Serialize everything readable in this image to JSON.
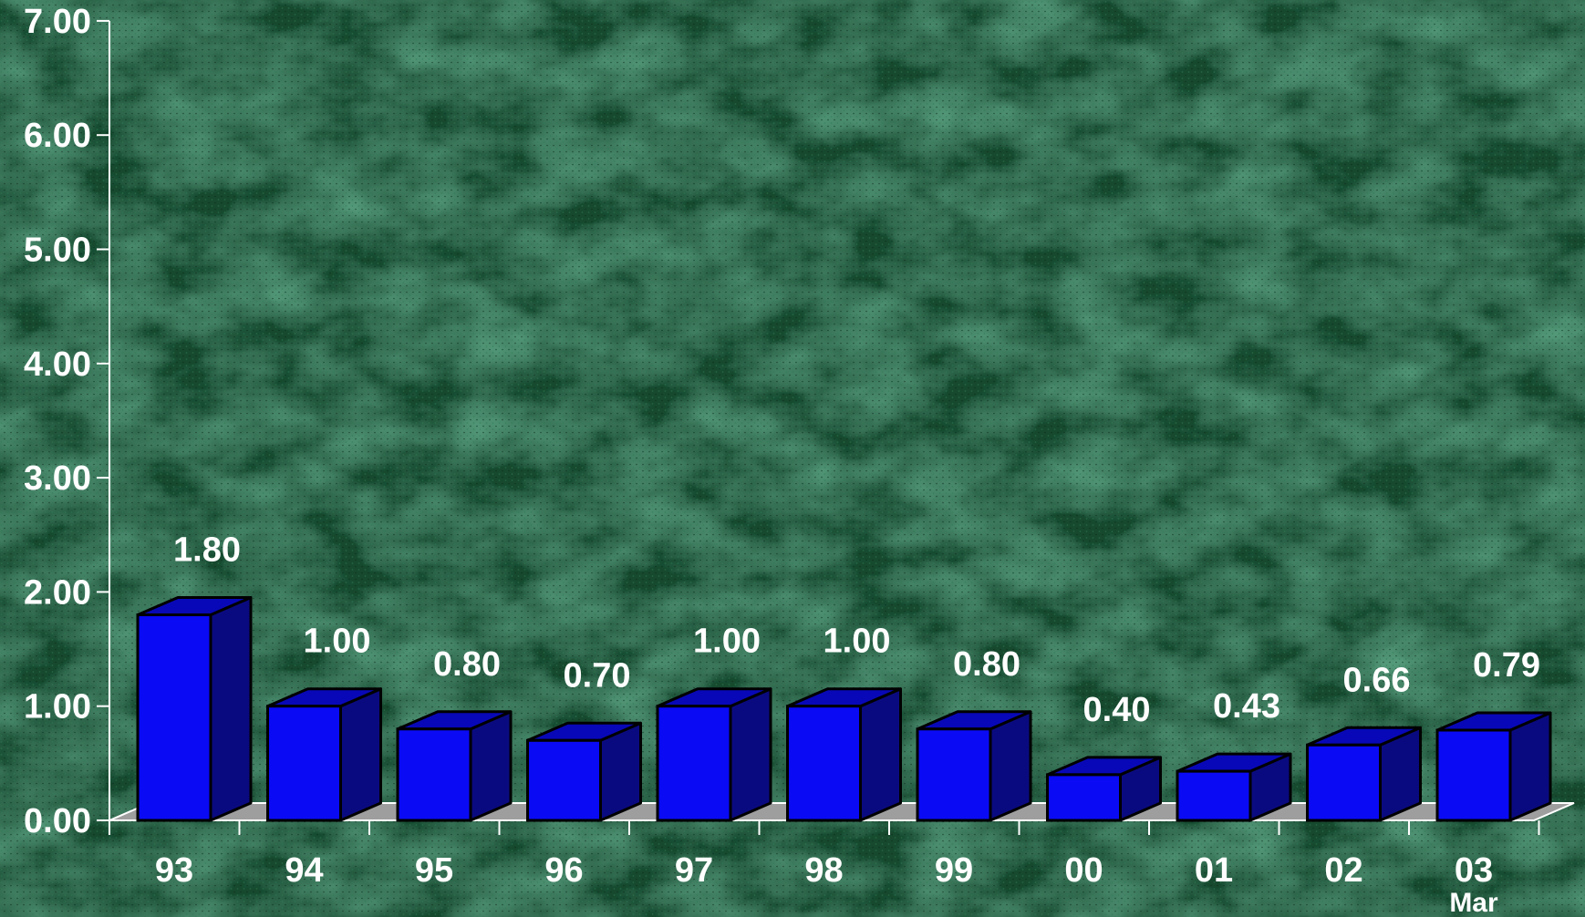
{
  "chart_data": {
    "type": "bar",
    "categories": [
      "93",
      "94",
      "95",
      "96",
      "97",
      "98",
      "99",
      "00",
      "01",
      "02",
      "03"
    ],
    "category_sublabels": [
      "",
      "",
      "",
      "",
      "",
      "",
      "",
      "",
      "",
      "",
      "Mar"
    ],
    "values": [
      1.8,
      1.0,
      0.8,
      0.7,
      1.0,
      1.0,
      0.8,
      0.4,
      0.43,
      0.66,
      0.79
    ],
    "value_labels": [
      "1.80",
      "1.00",
      "0.80",
      "0.70",
      "1.00",
      "1.00",
      "0.80",
      "0.40",
      "0.43",
      "0.66",
      "0.79"
    ],
    "ylim": [
      0,
      7
    ],
    "yticks": [
      "0.00",
      "1.00",
      "2.00",
      "3.00",
      "4.00",
      "5.00",
      "6.00",
      "7.00"
    ],
    "grid": false,
    "legend": "none",
    "style": "3d-bar",
    "colors": {
      "bar_front": "#0a0af5",
      "bar_side": "#0a0a80",
      "bar_top": "#0808b8",
      "bar_outline": "#000000",
      "floor": "#9e9e9e",
      "text": "#ffffff",
      "background": "#0f3a24"
    }
  }
}
